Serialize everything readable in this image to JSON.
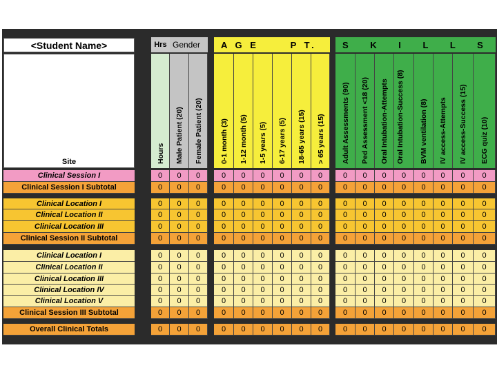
{
  "student_name": "<Student Name>",
  "site_label": "Site",
  "headers": {
    "hrs": "Hrs",
    "gender": "Gender",
    "age_pt": "A G E      P T.",
    "skills": "S K I L L S"
  },
  "columns": [
    {
      "label": "Hours",
      "group": "hrs"
    },
    {
      "label": "Male Patient (20)",
      "group": "gender"
    },
    {
      "label": "Female Patient (20)",
      "group": "gender"
    },
    {
      "label": "0-1 month (3)",
      "group": "age"
    },
    {
      "label": "1-12 month (5)",
      "group": "age"
    },
    {
      "label": "1-5 years (5)",
      "group": "age"
    },
    {
      "label": "6-17 years (5)",
      "group": "age"
    },
    {
      "label": "18-65 years (15)",
      "group": "age"
    },
    {
      "label": "> 65 years (15)",
      "group": "age"
    },
    {
      "label": "Adult Assessments (90)",
      "group": "skills"
    },
    {
      "label": "Ped Assessment <18 (20)",
      "group": "skills"
    },
    {
      "label": "Oral Intubation-Attempts",
      "group": "skills"
    },
    {
      "label": "Oral Intubation-Success (8)",
      "group": "skills"
    },
    {
      "label": "BVM ventilation (8)",
      "group": "skills"
    },
    {
      "label": "IV access-Attempts",
      "group": "skills"
    },
    {
      "label": "IV access-Success (15)",
      "group": "skills"
    },
    {
      "label": "ECG quiz (10)",
      "group": "skills"
    }
  ],
  "rows": [
    {
      "label": "Clinical Session I",
      "kind": "session1",
      "values": [
        "0",
        "0",
        "0",
        "0",
        "0",
        "0",
        "0",
        "0",
        "0",
        "0",
        "0",
        "0",
        "0",
        "0",
        "0",
        "0",
        "0"
      ]
    },
    {
      "label": "Clinical Session I Subtotal",
      "kind": "subtotal",
      "values": [
        "0",
        "0",
        "0",
        "0",
        "0",
        "0",
        "0",
        "0",
        "0",
        "0",
        "0",
        "0",
        "0",
        "0",
        "0",
        "0",
        "0"
      ]
    },
    {
      "label": "Clinical Location I",
      "kind": "session2",
      "values": [
        "0",
        "0",
        "0",
        "0",
        "0",
        "0",
        "0",
        "0",
        "0",
        "0",
        "0",
        "0",
        "0",
        "0",
        "0",
        "0",
        "0"
      ]
    },
    {
      "label": "Clinical Location II",
      "kind": "session2",
      "values": [
        "0",
        "0",
        "0",
        "0",
        "0",
        "0",
        "0",
        "0",
        "0",
        "0",
        "0",
        "0",
        "0",
        "0",
        "0",
        "0",
        "0"
      ]
    },
    {
      "label": "Clinical Location III",
      "kind": "session2",
      "values": [
        "0",
        "0",
        "0",
        "0",
        "0",
        "0",
        "0",
        "0",
        "0",
        "0",
        "0",
        "0",
        "0",
        "0",
        "0",
        "0",
        "0"
      ]
    },
    {
      "label": "Clinical Session II Subtotal",
      "kind": "subtotal",
      "values": [
        "0",
        "0",
        "0",
        "0",
        "0",
        "0",
        "0",
        "0",
        "0",
        "0",
        "0",
        "0",
        "0",
        "0",
        "0",
        "0",
        "0"
      ]
    },
    {
      "label": "Clinical Location I",
      "kind": "session3",
      "values": [
        "0",
        "0",
        "0",
        "0",
        "0",
        "0",
        "0",
        "0",
        "0",
        "0",
        "0",
        "0",
        "0",
        "0",
        "0",
        "0",
        "0"
      ]
    },
    {
      "label": "Clinical Location II",
      "kind": "session3",
      "values": [
        "0",
        "0",
        "0",
        "0",
        "0",
        "0",
        "0",
        "0",
        "0",
        "0",
        "0",
        "0",
        "0",
        "0",
        "0",
        "0",
        "0"
      ]
    },
    {
      "label": "Clinical Location III",
      "kind": "session3",
      "values": [
        "0",
        "0",
        "0",
        "0",
        "0",
        "0",
        "0",
        "0",
        "0",
        "0",
        "0",
        "0",
        "0",
        "0",
        "0",
        "0",
        "0"
      ]
    },
    {
      "label": "Clinical Location IV",
      "kind": "session3",
      "values": [
        "0",
        "0",
        "0",
        "0",
        "0",
        "0",
        "0",
        "0",
        "0",
        "0",
        "0",
        "0",
        "0",
        "0",
        "0",
        "0",
        "0"
      ]
    },
    {
      "label": "Clinical Location V",
      "kind": "session3",
      "values": [
        "0",
        "0",
        "0",
        "0",
        "0",
        "0",
        "0",
        "0",
        "0",
        "0",
        "0",
        "0",
        "0",
        "0",
        "0",
        "0",
        "0"
      ]
    },
    {
      "label": "Clinical Session III Subtotal",
      "kind": "subtotal",
      "values": [
        "0",
        "0",
        "0",
        "0",
        "0",
        "0",
        "0",
        "0",
        "0",
        "0",
        "0",
        "0",
        "0",
        "0",
        "0",
        "0",
        "0"
      ]
    },
    {
      "label": "Overall Clinical Totals",
      "kind": "total",
      "values": [
        "0",
        "0",
        "0",
        "0",
        "0",
        "0",
        "0",
        "0",
        "0",
        "0",
        "0",
        "0",
        "0",
        "0",
        "0",
        "0",
        "0"
      ]
    }
  ],
  "colors": {
    "background": "#2b2b2b",
    "hrs_header": "#c9c9c9",
    "hrs_col": "#d5ecd0",
    "gender": "#c4c4c4",
    "age": "#f6ee3c",
    "skills": "#3fae4a",
    "session1": "#f29bc4",
    "subtotal": "#f4a238",
    "session2": "#f7c531",
    "session3": "#fbeea6",
    "total": "#f4a238"
  }
}
